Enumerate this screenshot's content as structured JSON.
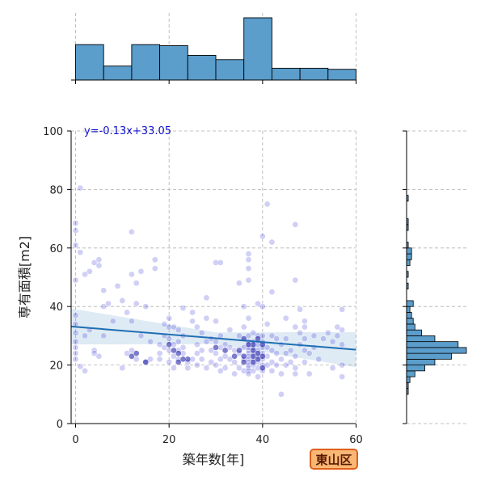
{
  "chart_data": {
    "type": "scatter",
    "xlabel": "築年数[年]",
    "ylabel": "専有面積[m2]",
    "xlim": [
      -1,
      60
    ],
    "ylim": [
      0,
      100
    ],
    "x_ticks": [
      0,
      20,
      40,
      60
    ],
    "y_ticks": [
      0,
      20,
      40,
      60,
      80,
      100
    ],
    "grid": true,
    "regression": {
      "slope": -0.13,
      "intercept": 33.05,
      "label": "y=-0.13x+33.05",
      "color": "#1f6fb4"
    },
    "points": [
      [
        1,
        80.5
      ],
      [
        0,
        68.5
      ],
      [
        0,
        66
      ],
      [
        0,
        61
      ],
      [
        1,
        58.5
      ],
      [
        0,
        49
      ],
      [
        2,
        51
      ],
      [
        3,
        52
      ],
      [
        4,
        55
      ],
      [
        5,
        56
      ],
      [
        5,
        54
      ],
      [
        6,
        45.5
      ],
      [
        0,
        37
      ],
      [
        0,
        34
      ],
      [
        0,
        31
      ],
      [
        0,
        28
      ],
      [
        0,
        26
      ],
      [
        0,
        24
      ],
      [
        0,
        22
      ],
      [
        1,
        19.5
      ],
      [
        2,
        18
      ],
      [
        2,
        30
      ],
      [
        3,
        32
      ],
      [
        4,
        25
      ],
      [
        4,
        24
      ],
      [
        5,
        23
      ],
      [
        6,
        30
      ],
      [
        6,
        40
      ],
      [
        7,
        41
      ],
      [
        8,
        35
      ],
      [
        9,
        47
      ],
      [
        10,
        19
      ],
      [
        10,
        42
      ],
      [
        11,
        38
      ],
      [
        11,
        24
      ],
      [
        12,
        65.5
      ],
      [
        12,
        51
      ],
      [
        12,
        35
      ],
      [
        12,
        25
      ],
      [
        13,
        22
      ],
      [
        13,
        48
      ],
      [
        13,
        41
      ],
      [
        14,
        52
      ],
      [
        14,
        30
      ],
      [
        15,
        21
      ],
      [
        15,
        40
      ],
      [
        16,
        28
      ],
      [
        16,
        22
      ],
      [
        17,
        53
      ],
      [
        17,
        56
      ],
      [
        18,
        27
      ],
      [
        18,
        24
      ],
      [
        18,
        22
      ],
      [
        19,
        34
      ],
      [
        19,
        30
      ],
      [
        19,
        26
      ],
      [
        20,
        36
      ],
      [
        20,
        33
      ],
      [
        20,
        29
      ],
      [
        20,
        25
      ],
      [
        20,
        21
      ],
      [
        21,
        33
      ],
      [
        21,
        27
      ],
      [
        21,
        23
      ],
      [
        21,
        19
      ],
      [
        22,
        32
      ],
      [
        22,
        28
      ],
      [
        22,
        25
      ],
      [
        22,
        22
      ],
      [
        23,
        39.5
      ],
      [
        23,
        30
      ],
      [
        23,
        26
      ],
      [
        23,
        24
      ],
      [
        24,
        21
      ],
      [
        24,
        19
      ],
      [
        25,
        38
      ],
      [
        25,
        35
      ],
      [
        25,
        22
      ],
      [
        26,
        33
      ],
      [
        26,
        27
      ],
      [
        26,
        24
      ],
      [
        26,
        20
      ],
      [
        27,
        31
      ],
      [
        27,
        25
      ],
      [
        27,
        22
      ],
      [
        28,
        36
      ],
      [
        28,
        43
      ],
      [
        28,
        28
      ],
      [
        28,
        19
      ],
      [
        29,
        29
      ],
      [
        29,
        25
      ],
      [
        29,
        21
      ],
      [
        30,
        55
      ],
      [
        30,
        35
      ],
      [
        30,
        28
      ],
      [
        30,
        24
      ],
      [
        30,
        20
      ],
      [
        31,
        55
      ],
      [
        31,
        30
      ],
      [
        31,
        26
      ],
      [
        31,
        22
      ],
      [
        31,
        18
      ],
      [
        32,
        27
      ],
      [
        32,
        23
      ],
      [
        32,
        19
      ],
      [
        33,
        32
      ],
      [
        33,
        26
      ],
      [
        33,
        22
      ],
      [
        34,
        25
      ],
      [
        34,
        21
      ],
      [
        34,
        17
      ],
      [
        35,
        48
      ],
      [
        35,
        30
      ],
      [
        35,
        24
      ],
      [
        35,
        19
      ],
      [
        36,
        40
      ],
      [
        36,
        33
      ],
      [
        36,
        26
      ],
      [
        36,
        22
      ],
      [
        36,
        18
      ],
      [
        37,
        58
      ],
      [
        37,
        56
      ],
      [
        37,
        53
      ],
      [
        37,
        49
      ],
      [
        37,
        36
      ],
      [
        37,
        30
      ],
      [
        37,
        28
      ],
      [
        37,
        26
      ],
      [
        37,
        25
      ],
      [
        37,
        24
      ],
      [
        37,
        23
      ],
      [
        37,
        22
      ],
      [
        37,
        21
      ],
      [
        37,
        20
      ],
      [
        37,
        19
      ],
      [
        37,
        18
      ],
      [
        37,
        17
      ],
      [
        38,
        31
      ],
      [
        38,
        28
      ],
      [
        38,
        26
      ],
      [
        38,
        24
      ],
      [
        38,
        22
      ],
      [
        38,
        20
      ],
      [
        38,
        18
      ],
      [
        39,
        41
      ],
      [
        39,
        30
      ],
      [
        39,
        27
      ],
      [
        39,
        25
      ],
      [
        39,
        23
      ],
      [
        39,
        21
      ],
      [
        39,
        19
      ],
      [
        39,
        16
      ],
      [
        40,
        64
      ],
      [
        40,
        40
      ],
      [
        40,
        30
      ],
      [
        40,
        28
      ],
      [
        40,
        26
      ],
      [
        40,
        24
      ],
      [
        40,
        22
      ],
      [
        40,
        20
      ],
      [
        40,
        18
      ],
      [
        41,
        75
      ],
      [
        41,
        34
      ],
      [
        41,
        26
      ],
      [
        41,
        23
      ],
      [
        41,
        20
      ],
      [
        42,
        62
      ],
      [
        42,
        45
      ],
      [
        42,
        30
      ],
      [
        42,
        25
      ],
      [
        42,
        21
      ],
      [
        42,
        18
      ],
      [
        43,
        29
      ],
      [
        43,
        24
      ],
      [
        43,
        20
      ],
      [
        44,
        10
      ],
      [
        44,
        27
      ],
      [
        44,
        22
      ],
      [
        44,
        17
      ],
      [
        45,
        36
      ],
      [
        45,
        29
      ],
      [
        45,
        24
      ],
      [
        45,
        20
      ],
      [
        46,
        25
      ],
      [
        46,
        21
      ],
      [
        47,
        68
      ],
      [
        47,
        49
      ],
      [
        47,
        33
      ],
      [
        47,
        23
      ],
      [
        47,
        19
      ],
      [
        47,
        17
      ],
      [
        48,
        39
      ],
      [
        48,
        31
      ],
      [
        48,
        27
      ],
      [
        49,
        35
      ],
      [
        49,
        33
      ],
      [
        49,
        29
      ],
      [
        49,
        25
      ],
      [
        49,
        21
      ],
      [
        50,
        24
      ],
      [
        50,
        17
      ],
      [
        51,
        30
      ],
      [
        51,
        26
      ],
      [
        52,
        22
      ],
      [
        53,
        29
      ],
      [
        54,
        31
      ],
      [
        55,
        19
      ],
      [
        55,
        28
      ],
      [
        56,
        33
      ],
      [
        56,
        30
      ],
      [
        57,
        39
      ],
      [
        57,
        32
      ],
      [
        57,
        27
      ],
      [
        57,
        20
      ],
      [
        57,
        16
      ]
    ],
    "dense_points": [
      [
        38,
        27
      ],
      [
        38,
        25
      ],
      [
        38,
        21
      ],
      [
        37,
        27
      ],
      [
        39,
        29
      ],
      [
        39,
        22
      ],
      [
        40,
        27
      ],
      [
        40,
        23
      ],
      [
        40,
        19
      ],
      [
        36,
        29
      ],
      [
        36,
        23
      ],
      [
        35,
        25
      ],
      [
        34,
        23
      ],
      [
        22,
        24
      ],
      [
        22,
        21
      ],
      [
        21,
        25
      ],
      [
        20,
        27
      ],
      [
        24,
        22
      ],
      [
        15,
        21
      ],
      [
        12,
        23
      ],
      [
        13,
        24
      ],
      [
        23,
        22
      ],
      [
        36,
        21
      ],
      [
        38,
        23
      ],
      [
        39,
        24
      ],
      [
        32,
        25
      ],
      [
        30,
        26
      ]
    ],
    "top_histogram": {
      "bin_edges": [
        0,
        6,
        12,
        18,
        24,
        30,
        36,
        42,
        48,
        54,
        60
      ],
      "counts": [
        33,
        13,
        33,
        32,
        23,
        19,
        58,
        11,
        11,
        10
      ]
    },
    "right_histogram": {
      "bin_edges": [
        10,
        12,
        14,
        16,
        18,
        20,
        22,
        24,
        26,
        28,
        30,
        32,
        34,
        36,
        38,
        40,
        42,
        44,
        46,
        48,
        50,
        52,
        54,
        56,
        58,
        60,
        62,
        64,
        66,
        68,
        70,
        72,
        74,
        76,
        78,
        80
      ],
      "counts": [
        1,
        1,
        2,
        5,
        11,
        17,
        27,
        36,
        31,
        17,
        9,
        5,
        4,
        3,
        2,
        4,
        0,
        0,
        1,
        0,
        1,
        0,
        2,
        3,
        3,
        1,
        0,
        0,
        1,
        1,
        0,
        0,
        0,
        1,
        0
      ]
    }
  },
  "badge": {
    "label": "東山区",
    "background": "#f9b776",
    "border": "#e0601a",
    "text_color": "#5a1a00"
  },
  "colors": {
    "scatter": "#2a2ad6",
    "hist": "#5b9dcb",
    "grid": "#b0b0b0"
  }
}
